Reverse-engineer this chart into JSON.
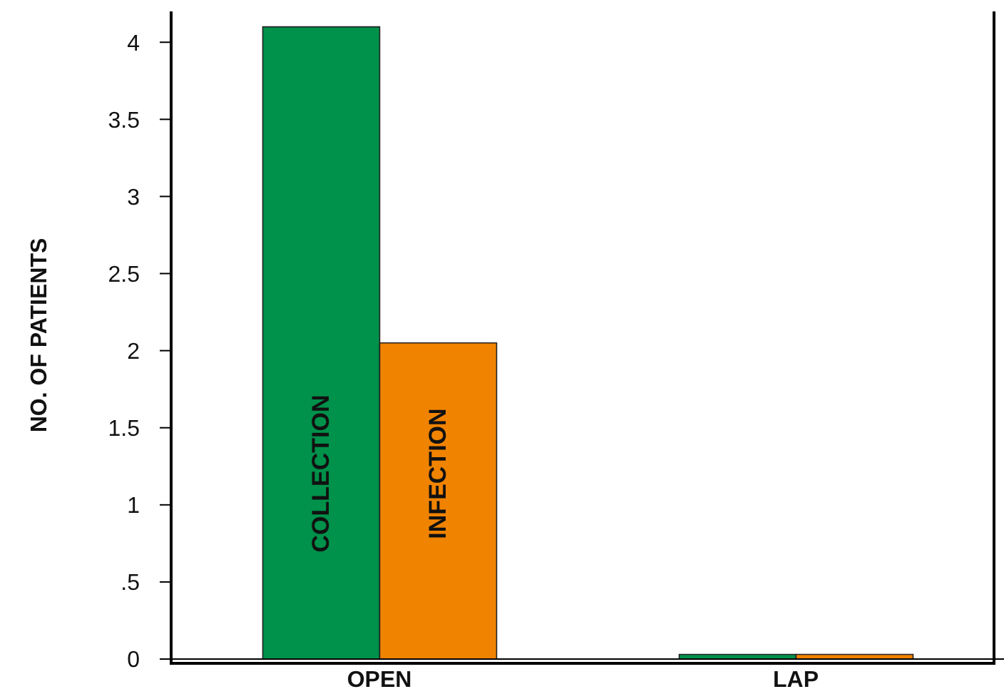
{
  "chart_data": {
    "type": "bar",
    "ylabel": "NO. OF PATIENTS",
    "categories": [
      "OPEN",
      "LAP"
    ],
    "series": [
      {
        "name": "COLLECTION",
        "color": "#00914a",
        "values": [
          4.1,
          0.03
        ]
      },
      {
        "name": "INFECTION",
        "color": "#f08300",
        "values": [
          2.05,
          0.03
        ]
      }
    ],
    "ylim": [
      0,
      4.2
    ],
    "yticks": [
      0,
      {
        "value": 0.5,
        "label": ".5"
      },
      1,
      1.5,
      2,
      2.5,
      3,
      3.5,
      4
    ],
    "grid": false,
    "legend": false
  }
}
